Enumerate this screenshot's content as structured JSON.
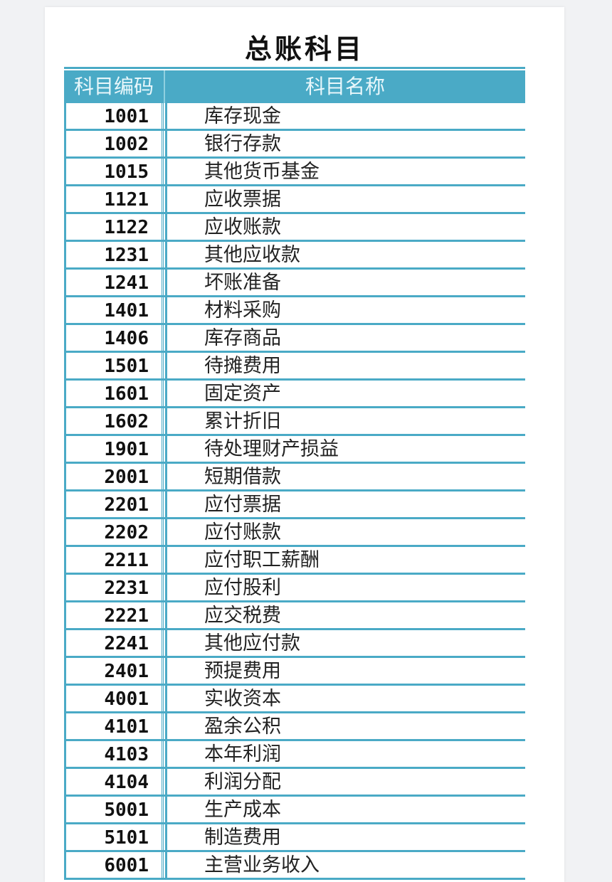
{
  "title": "总账科目",
  "columns": {
    "code": "科目编码",
    "name": "科目名称"
  },
  "rows": [
    {
      "code": "1001",
      "name": "库存现金"
    },
    {
      "code": "1002",
      "name": "银行存款"
    },
    {
      "code": "1015",
      "name": "其他货币基金"
    },
    {
      "code": "1121",
      "name": "应收票据"
    },
    {
      "code": "1122",
      "name": "应收账款"
    },
    {
      "code": "1231",
      "name": "其他应收款"
    },
    {
      "code": "1241",
      "name": "坏账准备"
    },
    {
      "code": "1401",
      "name": "材料采购"
    },
    {
      "code": "1406",
      "name": "库存商品"
    },
    {
      "code": "1501",
      "name": "待摊费用"
    },
    {
      "code": "1601",
      "name": "固定资产"
    },
    {
      "code": "1602",
      "name": "累计折旧"
    },
    {
      "code": "1901",
      "name": "待处理财产损益"
    },
    {
      "code": "2001",
      "name": "短期借款"
    },
    {
      "code": "2201",
      "name": "应付票据"
    },
    {
      "code": "2202",
      "name": "应付账款"
    },
    {
      "code": "2211",
      "name": "应付职工薪酬"
    },
    {
      "code": "2231",
      "name": "应付股利"
    },
    {
      "code": "2221",
      "name": "应交税费"
    },
    {
      "code": "2241",
      "name": "其他应付款"
    },
    {
      "code": "2401",
      "name": "预提费用"
    },
    {
      "code": "4001",
      "name": "实收资本"
    },
    {
      "code": "4101",
      "name": "盈余公积"
    },
    {
      "code": "4103",
      "name": "本年利润"
    },
    {
      "code": "4104",
      "name": "利润分配"
    },
    {
      "code": "5001",
      "name": "生产成本"
    },
    {
      "code": "5101",
      "name": "制造费用"
    },
    {
      "code": "6001",
      "name": "主营业务收入"
    }
  ],
  "colors": {
    "accent": "#4aaac6"
  }
}
